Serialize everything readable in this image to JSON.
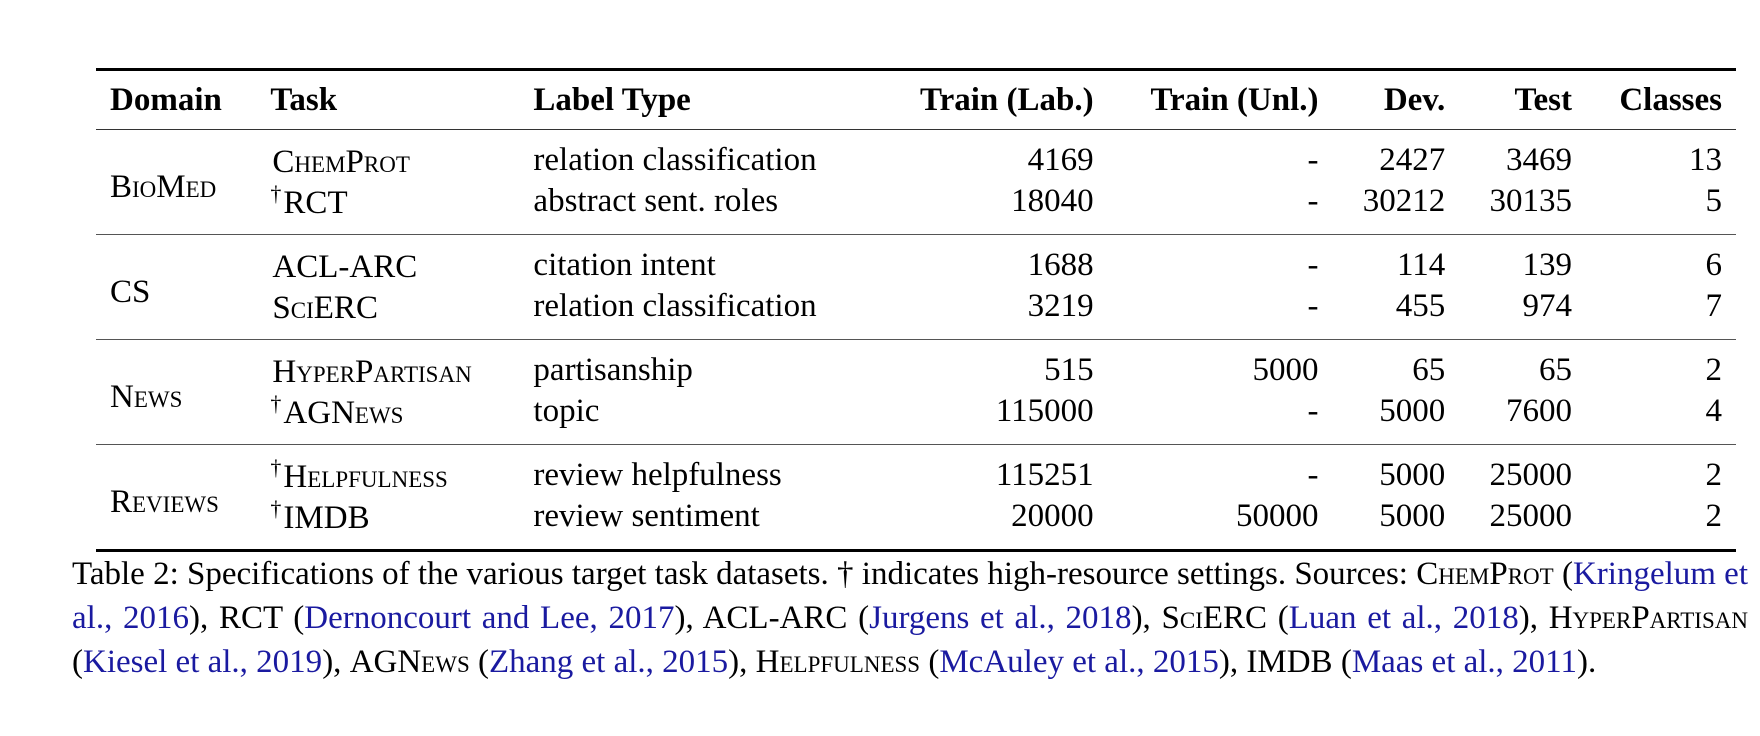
{
  "table": {
    "headers": [
      "Domain",
      "Task",
      "Label Type",
      "Train (Lab.)",
      "Train (Unl.)",
      "Dev.",
      "Test",
      "Classes"
    ],
    "groups": [
      {
        "domain": "BioMed",
        "rows": [
          {
            "dagger": "",
            "task": "ChemProt",
            "label_type": "relation classification",
            "train_lab": "4169",
            "train_unl": "-",
            "dev": "2427",
            "test": "3469",
            "classes": "13"
          },
          {
            "dagger": "†",
            "task": "RCT",
            "label_type": "abstract sent. roles",
            "train_lab": "18040",
            "train_unl": "-",
            "dev": "30212",
            "test": "30135",
            "classes": "5"
          }
        ]
      },
      {
        "domain": "CS",
        "rows": [
          {
            "dagger": "",
            "task": "ACL-ARC",
            "label_type": "citation intent",
            "train_lab": "1688",
            "train_unl": "-",
            "dev": "114",
            "test": "139",
            "classes": "6"
          },
          {
            "dagger": "",
            "task": "SciERC",
            "label_type": "relation classification",
            "train_lab": "3219",
            "train_unl": "-",
            "dev": "455",
            "test": "974",
            "classes": "7"
          }
        ]
      },
      {
        "domain": "News",
        "rows": [
          {
            "dagger": "",
            "task": "HyperPartisan",
            "label_type": "partisanship",
            "train_lab": "515",
            "train_unl": "5000",
            "dev": "65",
            "test": "65",
            "classes": "2"
          },
          {
            "dagger": "†",
            "task": "AGNews",
            "label_type": "topic",
            "train_lab": "115000",
            "train_unl": "-",
            "dev": "5000",
            "test": "7600",
            "classes": "4"
          }
        ]
      },
      {
        "domain": "Reviews",
        "rows": [
          {
            "dagger": "†",
            "task": "Helpfulness",
            "label_type": "review helpfulness",
            "train_lab": "115251",
            "train_unl": "-",
            "dev": "5000",
            "test": "25000",
            "classes": "2"
          },
          {
            "dagger": "†",
            "task": "IMDB",
            "label_type": "review sentiment",
            "train_lab": "20000",
            "train_unl": "50000",
            "dev": "5000",
            "test": "25000",
            "classes": "2"
          }
        ]
      }
    ]
  },
  "caption": {
    "lead": "Table 2: Specifications of the various target task datasets. † indicates high-resource settings. Sources: ",
    "items": [
      {
        "name": "ChemProt",
        "cite": "Kringelum et al., 2016",
        "sep": "), "
      },
      {
        "name": "RCT",
        "cite": "Dernoncourt and Lee, 2017",
        "sep": "), "
      },
      {
        "name": "ACL-ARC",
        "cite": "Jurgens et al., 2018",
        "sep": "), "
      },
      {
        "name": "SciERC",
        "cite": "Luan et al., 2018",
        "sep": "), "
      },
      {
        "name": "HyperPartisan",
        "cite": "Kiesel et al., 2019",
        "sep": "), "
      },
      {
        "name": "AGNews",
        "cite": "Zhang et al., 2015",
        "sep": "), "
      },
      {
        "name": "Helpfulness",
        "cite": "McAuley et al., 2015",
        "sep": "), "
      },
      {
        "name": "IMDB",
        "cite": "Maas et al., 2011",
        "sep": ")."
      }
    ],
    "colors": {
      "citation": "#1a1aa0"
    }
  }
}
